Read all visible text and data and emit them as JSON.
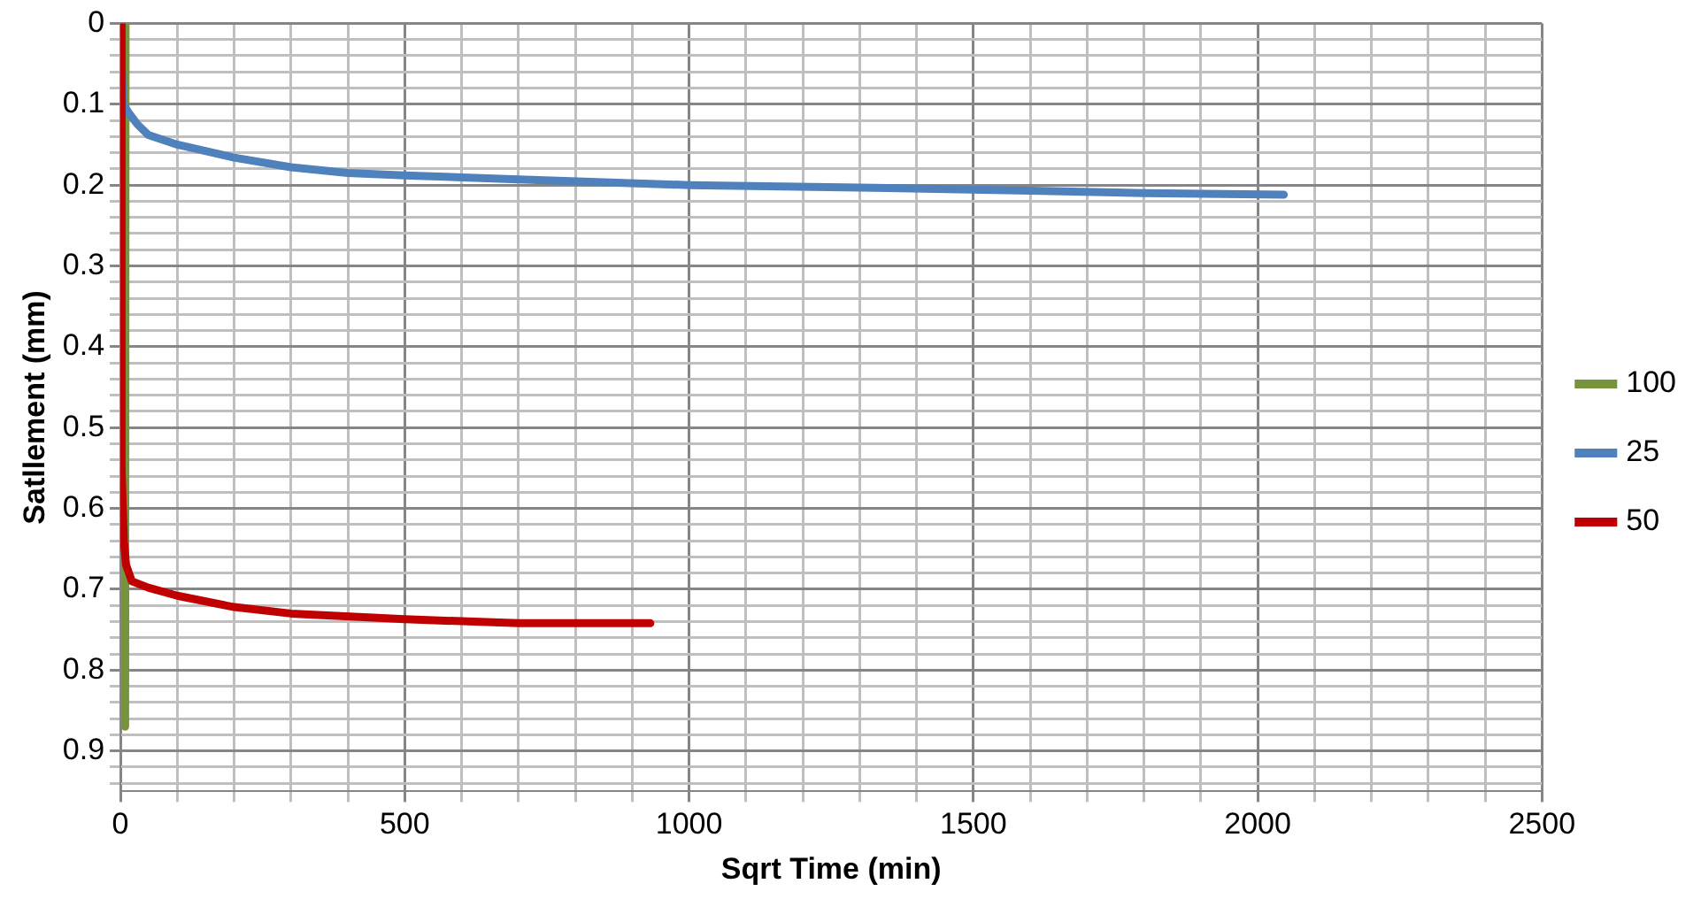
{
  "chart_data": {
    "type": "line",
    "xlabel": "Sqrt Time (min)",
    "ylabel": "Satllement (mm)",
    "xlim": [
      0,
      2500
    ],
    "ylim": [
      0.95,
      0
    ],
    "xticks": [
      0,
      {
        "value": 100,
        "label": null
      },
      {
        "value": 200,
        "label": null
      },
      {
        "value": 300,
        "label": null
      },
      {
        "value": 400,
        "label": null
      },
      500,
      {
        "value": 600,
        "label": null
      },
      {
        "value": 700,
        "label": null
      },
      {
        "value": 800,
        "label": null
      },
      {
        "value": 900,
        "label": null
      },
      1000,
      {
        "value": 1100,
        "label": null
      },
      {
        "value": 1200,
        "label": null
      },
      {
        "value": 1300,
        "label": null
      },
      {
        "value": 1400,
        "label": null
      },
      1500,
      {
        "value": 1600,
        "label": null
      },
      {
        "value": 1700,
        "label": null
      },
      {
        "value": 1800,
        "label": null
      },
      {
        "value": 1900,
        "label": null
      },
      2000,
      {
        "value": 2100,
        "label": null
      },
      {
        "value": 2200,
        "label": null
      },
      {
        "value": 2300,
        "label": null
      },
      {
        "value": 2400,
        "label": null
      },
      2500
    ],
    "yticks": [
      0,
      {
        "value": 0.02,
        "label": null
      },
      {
        "value": 0.04,
        "label": null
      },
      {
        "value": 0.06,
        "label": null
      },
      {
        "value": 0.08,
        "label": null
      },
      0.1,
      {
        "value": 0.12,
        "label": null
      },
      {
        "value": 0.14,
        "label": null
      },
      {
        "value": 0.16,
        "label": null
      },
      {
        "value": 0.18,
        "label": null
      },
      0.2,
      {
        "value": 0.22,
        "label": null
      },
      {
        "value": 0.24,
        "label": null
      },
      {
        "value": 0.26,
        "label": null
      },
      {
        "value": 0.28,
        "label": null
      },
      0.3,
      {
        "value": 0.32,
        "label": null
      },
      {
        "value": 0.34,
        "label": null
      },
      {
        "value": 0.36,
        "label": null
      },
      {
        "value": 0.38,
        "label": null
      },
      0.4,
      {
        "value": 0.42,
        "label": null
      },
      {
        "value": 0.44,
        "label": null
      },
      {
        "value": 0.46,
        "label": null
      },
      {
        "value": 0.48,
        "label": null
      },
      0.5,
      {
        "value": 0.52,
        "label": null
      },
      {
        "value": 0.54,
        "label": null
      },
      {
        "value": 0.56,
        "label": null
      },
      {
        "value": 0.58,
        "label": null
      },
      0.6,
      {
        "value": 0.62,
        "label": null
      },
      {
        "value": 0.64,
        "label": null
      },
      {
        "value": 0.66,
        "label": null
      },
      {
        "value": 0.68,
        "label": null
      },
      0.7,
      {
        "value": 0.72,
        "label": null
      },
      {
        "value": 0.74,
        "label": null
      },
      {
        "value": 0.76,
        "label": null
      },
      {
        "value": 0.78,
        "label": null
      },
      0.8,
      {
        "value": 0.82,
        "label": null
      },
      {
        "value": 0.84,
        "label": null
      },
      {
        "value": 0.86,
        "label": null
      },
      {
        "value": 0.88,
        "label": null
      },
      0.9,
      {
        "value": 0.92,
        "label": null
      },
      {
        "value": 0.94,
        "label": null
      }
    ],
    "grid": true,
    "legend": "right",
    "marker": "none",
    "line_style": "solid",
    "series": [
      {
        "name": "100",
        "color": "#77933c",
        "x": [
          9,
          9,
          8,
          8
        ],
        "values": [
          0,
          0.3,
          0.65,
          0.87
        ]
      },
      {
        "name": "25",
        "color": "#4f81bd",
        "x": [
          0,
          2,
          5,
          14,
          30,
          49,
          100,
          200,
          300,
          400,
          500,
          700,
          1000,
          1300,
          1600,
          1800,
          2046
        ],
        "values": [
          0,
          0.05,
          0.1,
          0.11,
          0.125,
          0.138,
          0.15,
          0.166,
          0.178,
          0.185,
          0.188,
          0.193,
          0.2,
          0.203,
          0.207,
          0.21,
          0.212
        ]
      },
      {
        "name": "50",
        "color": "#c00000",
        "x": [
          0,
          1,
          3,
          6,
          10,
          20,
          49,
          100,
          200,
          300,
          500,
          700,
          932
        ],
        "values": [
          0,
          0.3,
          0.55,
          0.64,
          0.67,
          0.69,
          0.698,
          0.708,
          0.722,
          0.73,
          0.737,
          0.742,
          0.742
        ]
      }
    ]
  }
}
